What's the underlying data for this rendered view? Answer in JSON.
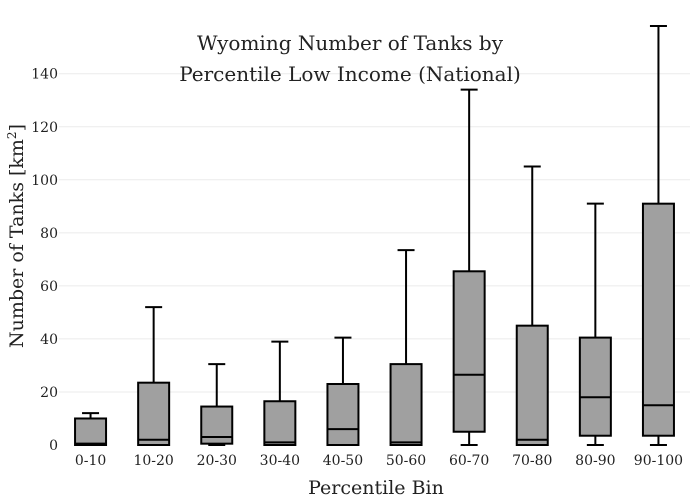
{
  "chart_data": {
    "type": "box",
    "title_lines": [
      "Wyoming Number of Tanks by",
      "Percentile Low Income (National)"
    ],
    "xlabel": "Percentile Bin",
    "ylabel_main": "Number of Tanks  [km",
    "ylabel_sup": "2",
    "ylabel_end": "]",
    "ylim": [
      0,
      158
    ],
    "yticks": [
      0,
      20,
      40,
      60,
      80,
      100,
      120,
      140
    ],
    "grid": true,
    "box_color": "#a0a0a0",
    "categories": [
      "0-10",
      "10-20",
      "20-30",
      "30-40",
      "40-50",
      "50-60",
      "60-70",
      "70-80",
      "80-90",
      "90-100"
    ],
    "boxes": [
      {
        "min": 0,
        "q1": 0,
        "median": 0.5,
        "q3": 10,
        "max": 12
      },
      {
        "min": 0,
        "q1": 0,
        "median": 2,
        "q3": 23.5,
        "max": 52
      },
      {
        "min": 0,
        "q1": 0.5,
        "median": 3,
        "q3": 14.5,
        "max": 30.5
      },
      {
        "min": 0,
        "q1": 0,
        "median": 1,
        "q3": 16.5,
        "max": 39
      },
      {
        "min": 0,
        "q1": 0,
        "median": 6,
        "q3": 23,
        "max": 40.5
      },
      {
        "min": 0,
        "q1": 0,
        "median": 1,
        "q3": 30.5,
        "max": 73.5
      },
      {
        "min": 0,
        "q1": 5,
        "median": 26.5,
        "q3": 65.5,
        "max": 134
      },
      {
        "min": 0,
        "q1": 0,
        "median": 2,
        "q3": 45,
        "max": 105
      },
      {
        "min": 0,
        "q1": 3.5,
        "median": 18,
        "q3": 40.5,
        "max": 91
      },
      {
        "min": 0,
        "q1": 3.5,
        "median": 15,
        "q3": 91,
        "max": 158
      }
    ]
  }
}
